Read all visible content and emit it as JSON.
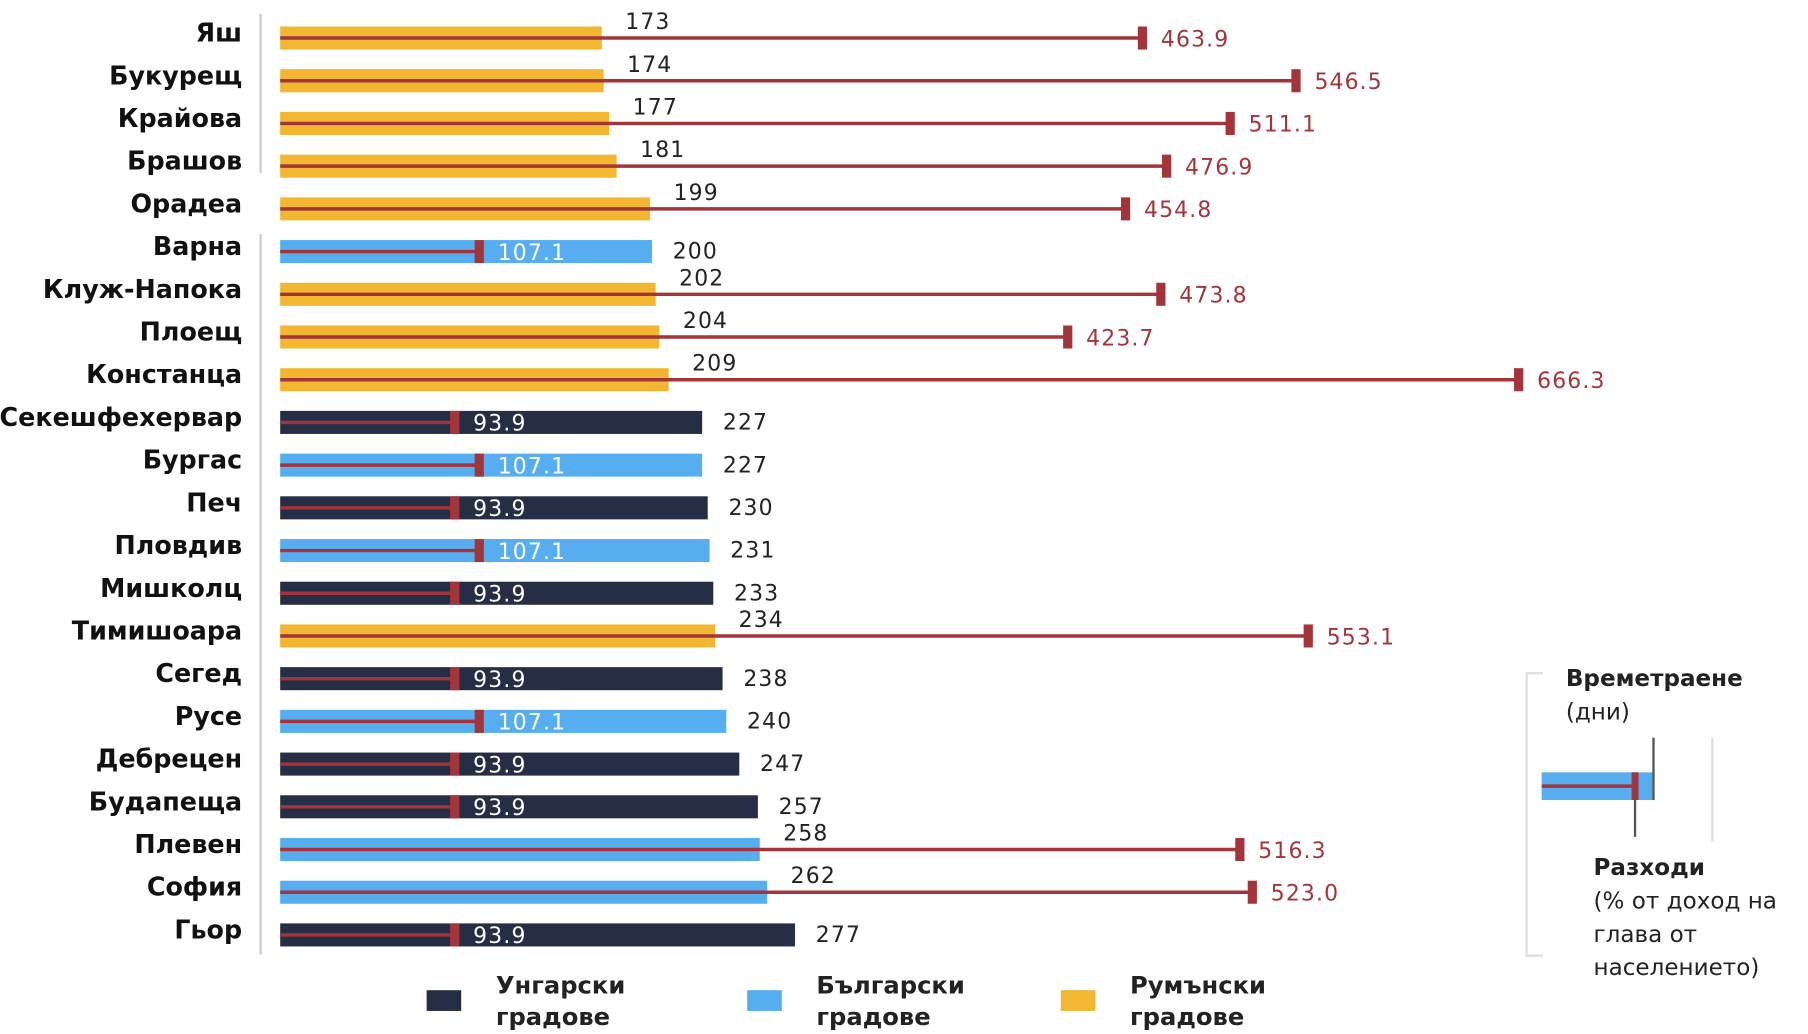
{
  "chart_data": {
    "type": "bar",
    "categories": [
      "Яш",
      "Букурещ",
      "Крайова",
      "Брашов",
      "Орадеа",
      "Варна",
      "Клуж-Напока",
      "Плоещ",
      "Констанца",
      "Секешфехервар",
      "Бургас",
      "Печ",
      "Пловдив",
      "Мишколц",
      "Тимишоара",
      "Сегед",
      "Русе",
      "Дебрецен",
      "Будапеща",
      "Плевен",
      "София",
      "Гьор"
    ],
    "series": [
      {
        "name": "Унгарски градове",
        "color": "#262e45",
        "values": [
          null,
          null,
          null,
          null,
          null,
          null,
          null,
          null,
          null,
          227,
          null,
          230,
          null,
          233,
          null,
          238,
          null,
          247,
          257,
          null,
          null,
          277
        ]
      },
      {
        "name": "Български градове",
        "color": "#56aef0",
        "values": [
          null,
          null,
          null,
          null,
          null,
          200,
          null,
          null,
          null,
          null,
          227,
          null,
          231,
          null,
          null,
          null,
          240,
          null,
          null,
          258,
          262,
          null
        ]
      },
      {
        "name": "Румънски градове",
        "color": "#f2b630",
        "values": [
          173,
          174,
          177,
          181,
          199,
          null,
          202,
          204,
          209,
          null,
          null,
          null,
          null,
          null,
          234,
          null,
          null,
          null,
          null,
          null,
          null,
          null
        ]
      }
    ],
    "costs": {
      "color": "#a3343a",
      "values": [
        463.9,
        546.5,
        511.1,
        476.9,
        454.8,
        107.1,
        473.8,
        423.7,
        666.3,
        93.9,
        107.1,
        93.9,
        107.1,
        93.9,
        553.1,
        93.9,
        107.1,
        93.9,
        93.9,
        516.3,
        523.0,
        93.9
      ],
      "value_labels": [
        "463.9",
        "546.5",
        "511.1",
        "476.9",
        "454.8",
        "107.1",
        "473.8",
        "423.7",
        "666.3",
        "93.9",
        "107.1",
        "93.9",
        "107.1",
        "93.9",
        "553.1",
        "93.9",
        "107.1",
        "93.9",
        "93.9",
        "516.3",
        "523.0",
        "93.9"
      ]
    },
    "key": {
      "duration_title": "Времетраене",
      "duration_unit": "(дни)",
      "cost_title": "Разходи",
      "cost_unit": "(% от доход на глава от населението)"
    }
  }
}
